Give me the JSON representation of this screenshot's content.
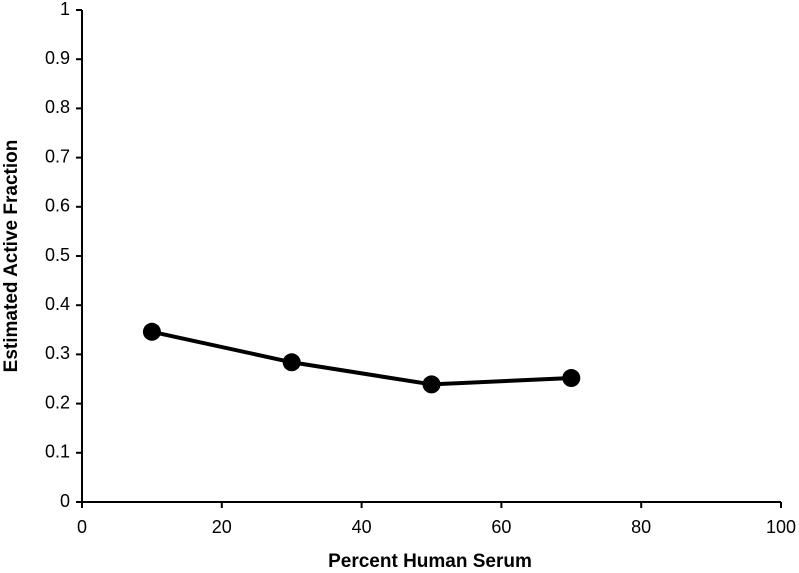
{
  "chart_data": {
    "type": "line",
    "x_label": "Percent Human Serum",
    "y_label": "Estimated Active Fraction",
    "x": [
      10,
      30,
      50,
      70
    ],
    "values": [
      0.346,
      0.284,
      0.239,
      0.252
    ],
    "color": "#000000",
    "xlim": [
      0,
      100
    ],
    "xticks": [
      0,
      20,
      40,
      60,
      80,
      100
    ],
    "ylim": [
      0,
      1
    ],
    "yticks": [
      0,
      0.1,
      0.2,
      0.3,
      0.4,
      0.5,
      0.6,
      0.7,
      0.8,
      0.9,
      1
    ],
    "grid": false
  }
}
